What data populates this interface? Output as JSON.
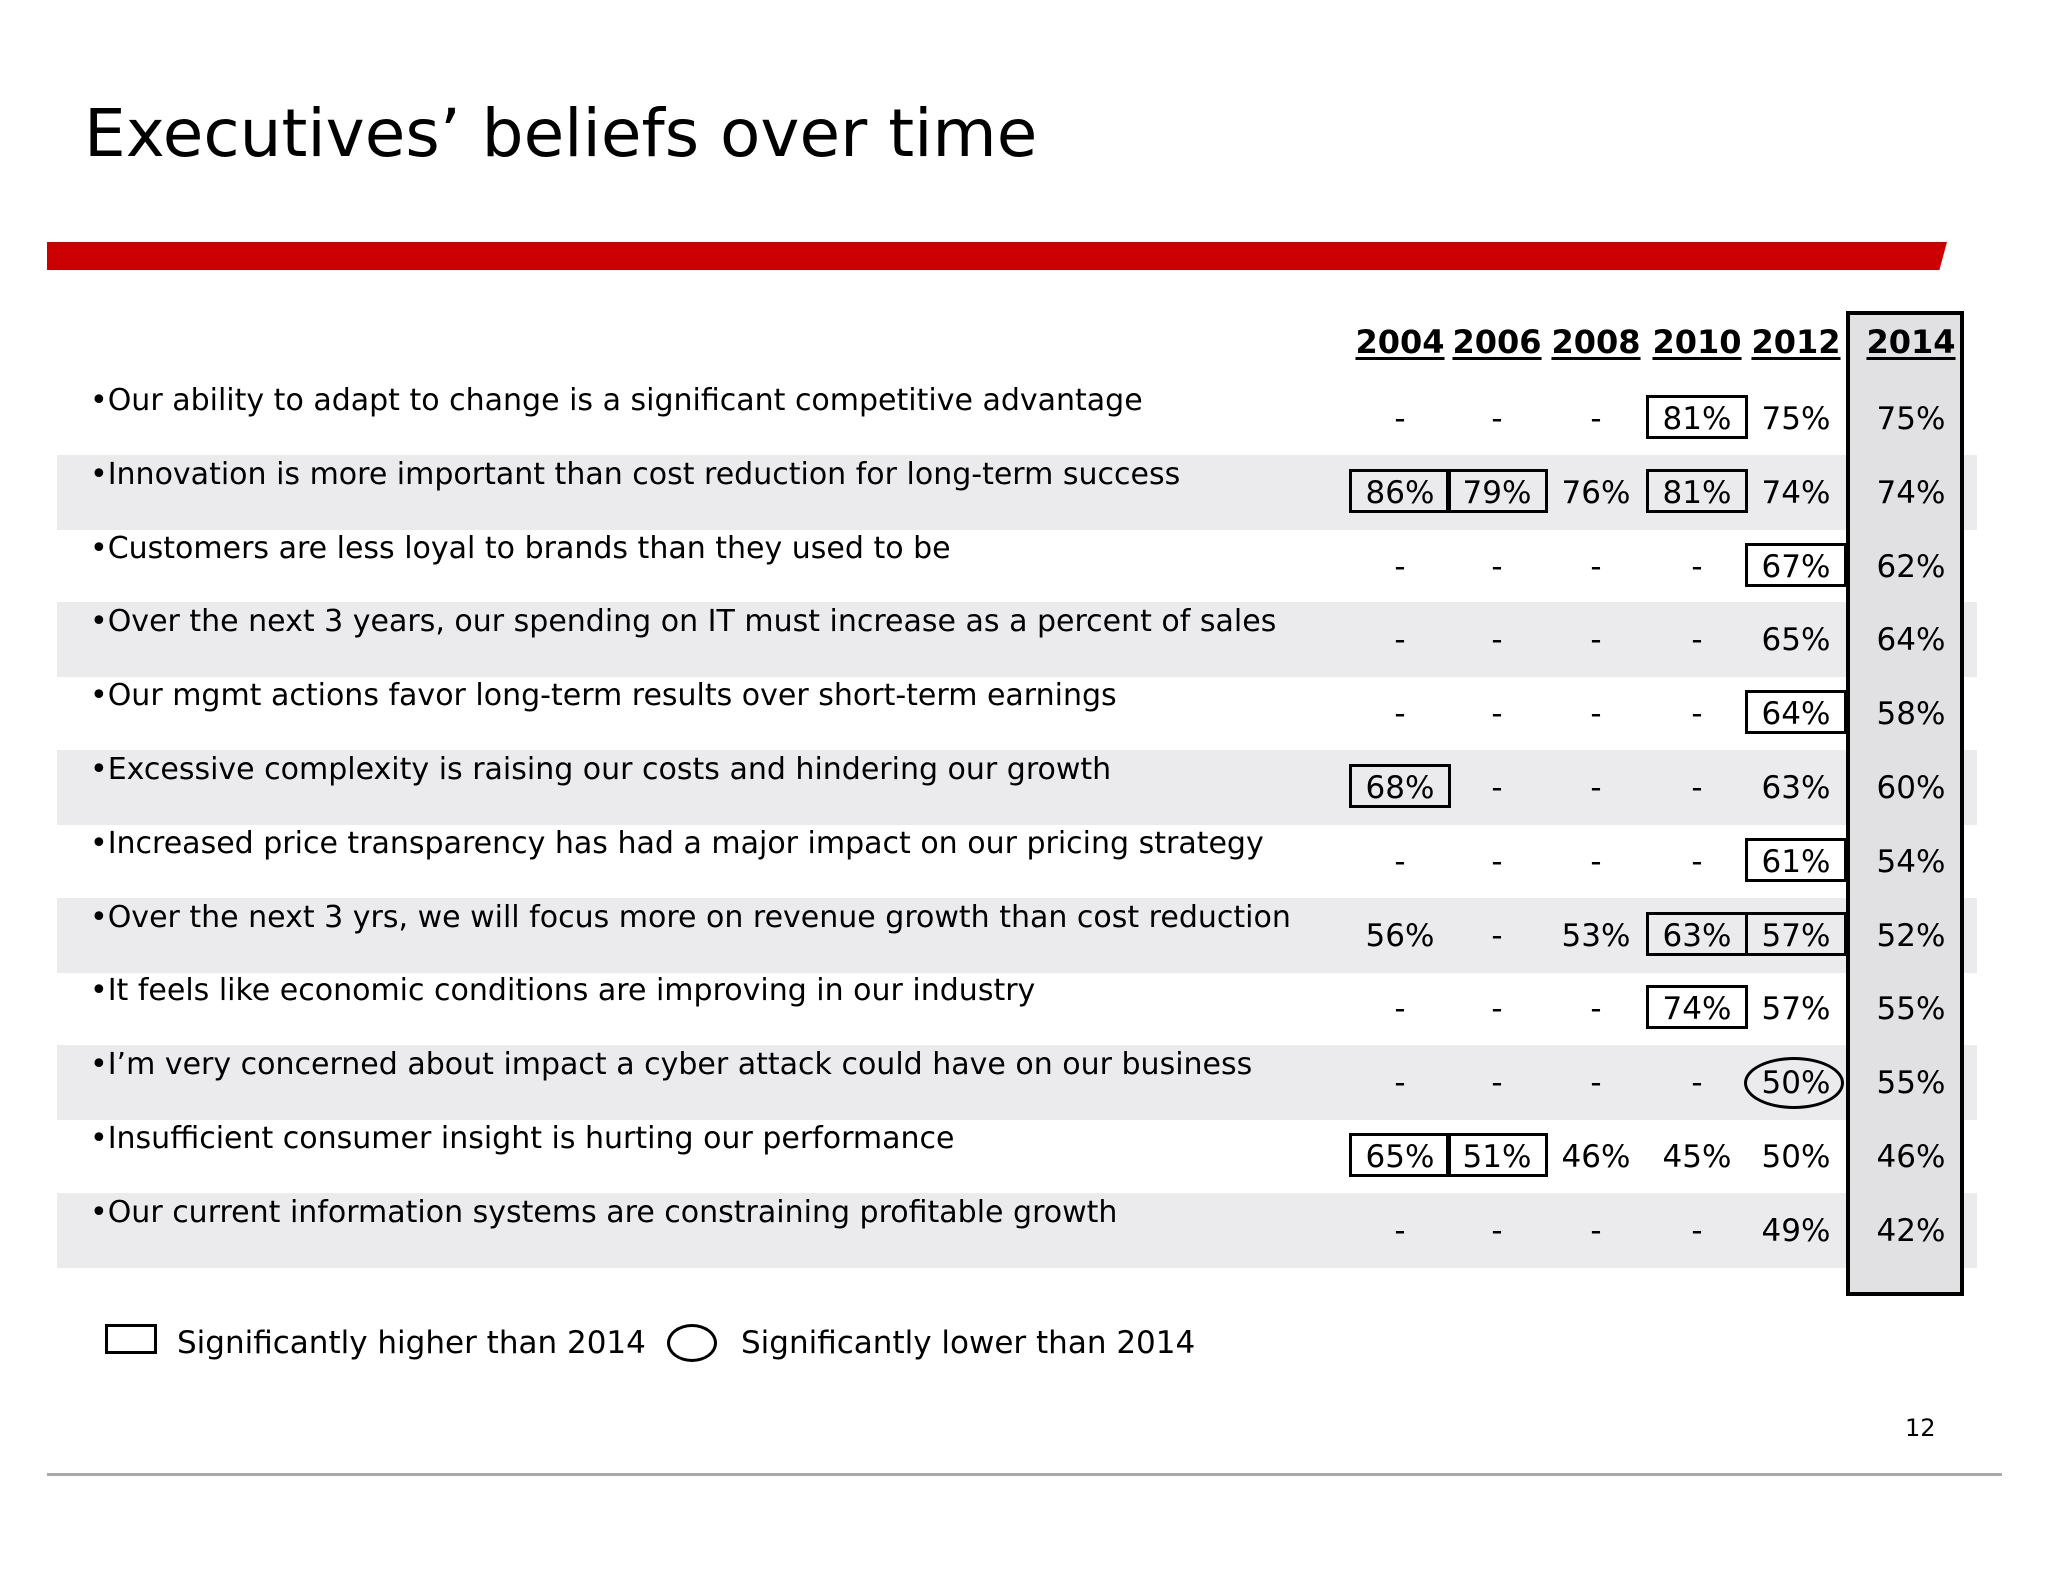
{
  "title": "Executives’ beliefs over time",
  "years": [
    "2004",
    "2006",
    "2008",
    "2010",
    "2012",
    "2014"
  ],
  "rows": [
    {
      "statement": "•Our ability to adapt to change is a significant competitive advantage",
      "values": [
        "-",
        "-",
        "-",
        "81%",
        "75%",
        "75%"
      ],
      "marks": [
        "",
        "",
        "",
        "higher",
        "",
        ""
      ]
    },
    {
      "statement": "•Innovation is more important than cost reduction for long-term success",
      "values": [
        "86%",
        "79%",
        "76%",
        "81%",
        "74%",
        "74%"
      ],
      "marks": [
        "higher",
        "higher",
        "",
        "higher",
        "",
        ""
      ]
    },
    {
      "statement": "•Customers are less loyal to brands than they used to be",
      "values": [
        "-",
        "-",
        "-",
        "-",
        "67%",
        "62%"
      ],
      "marks": [
        "",
        "",
        "",
        "",
        "higher",
        ""
      ]
    },
    {
      "statement": "•Over the next 3 years, our spending on IT must increase as a percent of sales",
      "values": [
        "-",
        "-",
        "-",
        "-",
        "65%",
        "64%"
      ],
      "marks": [
        "",
        "",
        "",
        "",
        "",
        ""
      ]
    },
    {
      "statement": "•Our mgmt actions favor long-term results over short-term earnings",
      "values": [
        "-",
        "-",
        "-",
        "-",
        "64%",
        "58%"
      ],
      "marks": [
        "",
        "",
        "",
        "",
        "higher",
        ""
      ]
    },
    {
      "statement": "•Excessive complexity is raising our costs and hindering our growth",
      "values": [
        "68%",
        "-",
        "-",
        "-",
        "63%",
        "60%"
      ],
      "marks": [
        "higher",
        "",
        "",
        "",
        "",
        ""
      ]
    },
    {
      "statement": "•Increased price transparency has had a major impact on our pricing strategy",
      "values": [
        "-",
        "-",
        "-",
        "-",
        "61%",
        "54%"
      ],
      "marks": [
        "",
        "",
        "",
        "",
        "higher",
        ""
      ]
    },
    {
      "statement": "•Over the next 3 yrs, we will focus more on revenue growth than cost reduction",
      "values": [
        "56%",
        "-",
        "53%",
        "63%",
        "57%",
        "52%"
      ],
      "marks": [
        "",
        "",
        "",
        "higher",
        "higher",
        ""
      ]
    },
    {
      "statement": "•It feels like economic conditions are improving in our industry",
      "values": [
        "-",
        "-",
        "-",
        "74%",
        "57%",
        "55%"
      ],
      "marks": [
        "",
        "",
        "",
        "higher",
        "",
        ""
      ]
    },
    {
      "statement": "•I’m very concerned about impact a cyber attack could have on our business",
      "values": [
        "-",
        "-",
        "-",
        "-",
        "50%",
        "55%"
      ],
      "marks": [
        "",
        "",
        "",
        "",
        "lower",
        ""
      ]
    },
    {
      "statement": "•Insufficient consumer insight is hurting our performance",
      "values": [
        "65%",
        "51%",
        "46%",
        "45%",
        "50%",
        "46%"
      ],
      "marks": [
        "higher",
        "higher",
        "",
        "",
        "",
        ""
      ]
    },
    {
      "statement": "•Our current information systems are constraining profitable growth",
      "values": [
        "-",
        "-",
        "-",
        "-",
        "49%",
        "42%"
      ],
      "marks": [
        "",
        "",
        "",
        "",
        "",
        ""
      ]
    }
  ],
  "legend": {
    "higher": "Significantly higher than 2014",
    "lower": "Significantly lower than 2014"
  },
  "page_number": "12",
  "colors": {
    "accent": "#cc0000",
    "band": "#ebebed",
    "highlight_column": "#e1e1e3"
  }
}
